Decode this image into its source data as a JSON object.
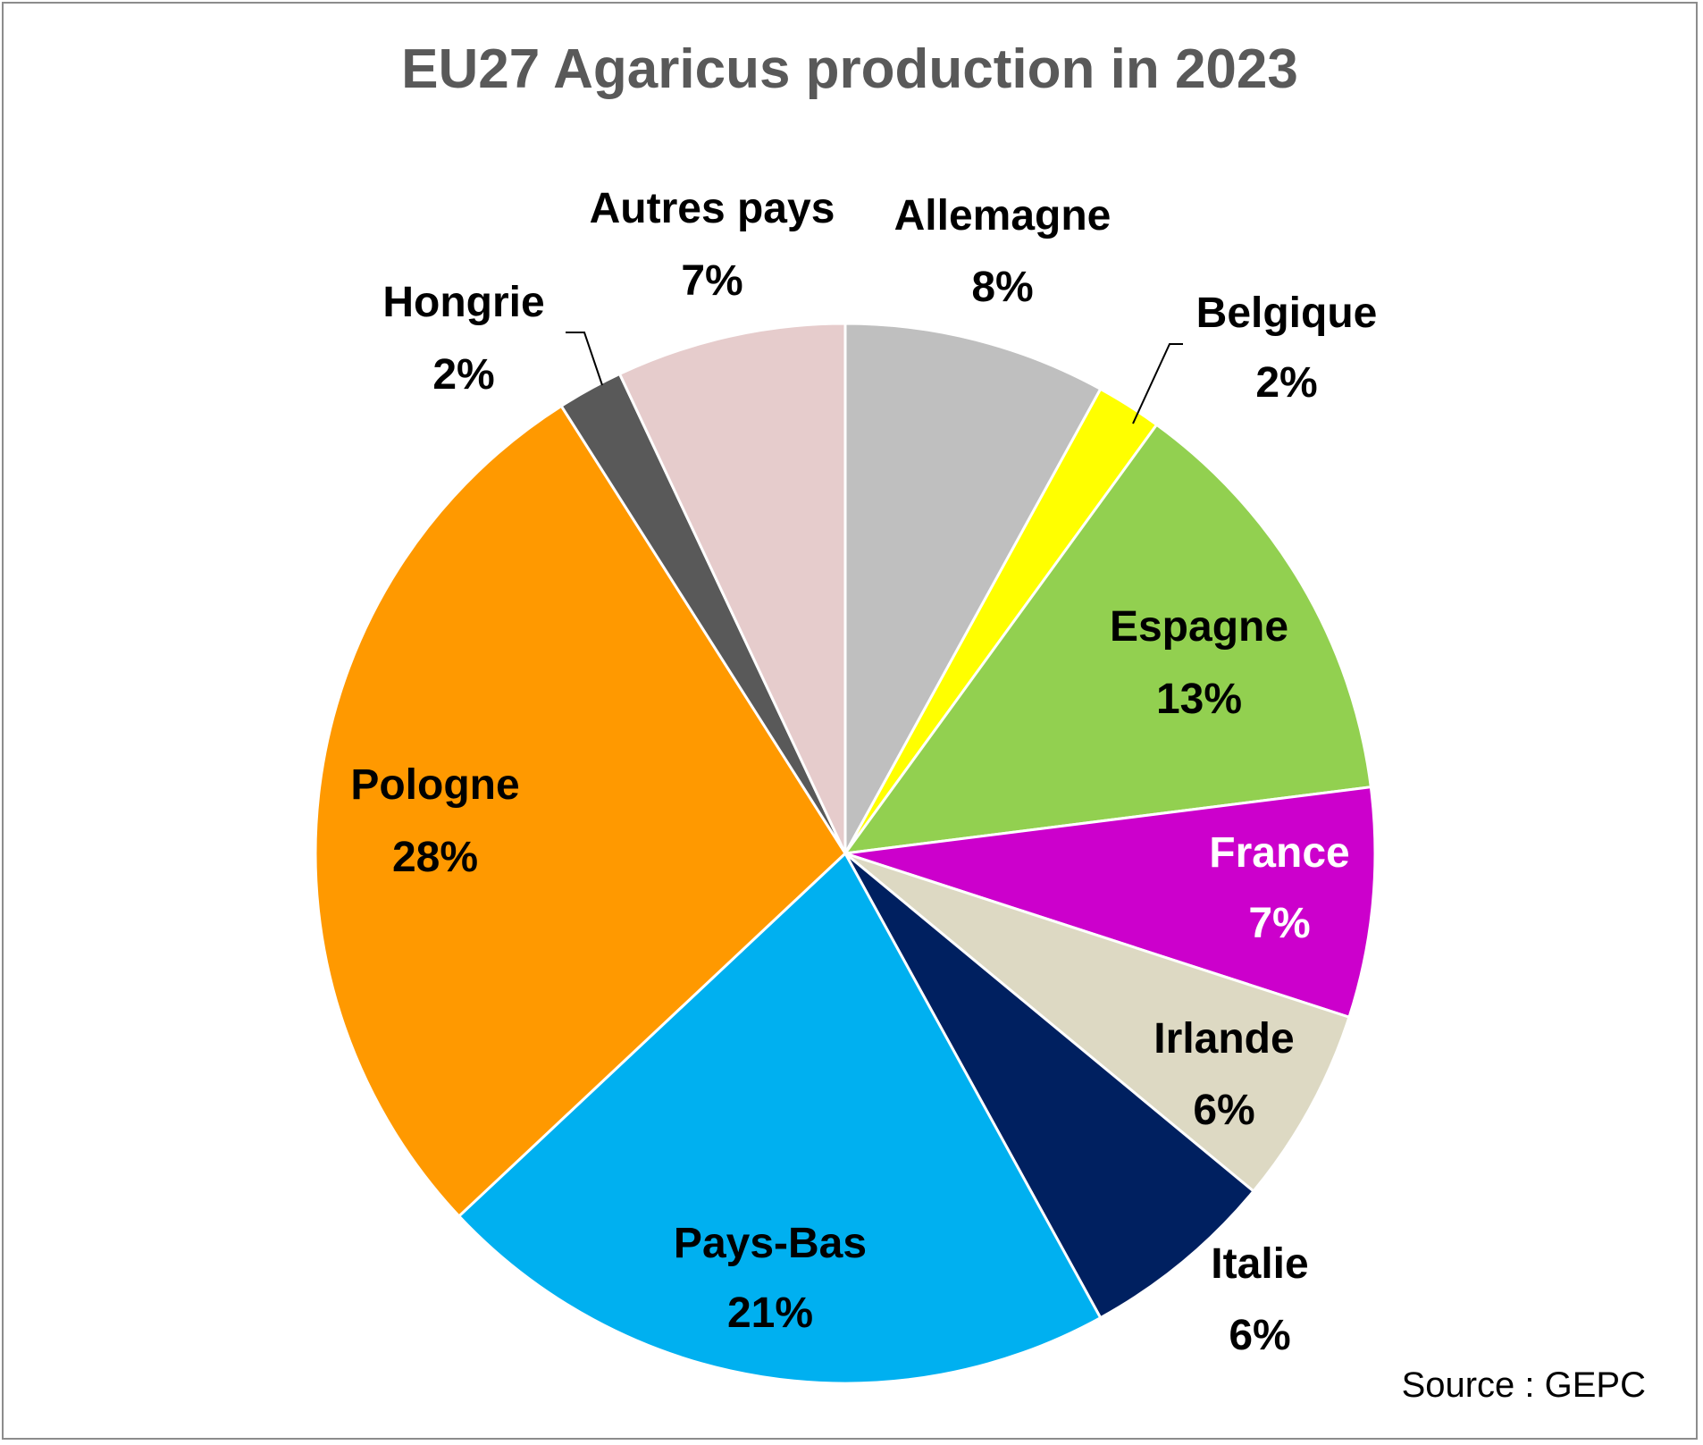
{
  "chart_data": {
    "type": "pie",
    "title": "EU27 Agaricus production in 2023",
    "source": "Source : GEPC",
    "start_angle_deg": 0,
    "direction": "clockwise",
    "slices": [
      {
        "name": "Allemagne",
        "value": 8,
        "label": "8%",
        "color": "#bfbfbf",
        "text_color": "#000000"
      },
      {
        "name": "Belgique",
        "value": 2,
        "label": "2%",
        "color": "#ffff00",
        "text_color": "#000000"
      },
      {
        "name": "Espagne",
        "value": 13,
        "label": "13%",
        "color": "#92d050",
        "text_color": "#000000"
      },
      {
        "name": "France",
        "value": 7,
        "label": "7%",
        "color": "#cc00cc",
        "text_color": "#ffffff"
      },
      {
        "name": "Irlande",
        "value": 6,
        "label": "6%",
        "color": "#ddd9c3",
        "text_color": "#000000"
      },
      {
        "name": "Italie",
        "value": 6,
        "label": "6%",
        "color": "#002060",
        "text_color": "#000000"
      },
      {
        "name": "Pays-Bas",
        "value": 21,
        "label": "21%",
        "color": "#00b0f0",
        "text_color": "#000000"
      },
      {
        "name": "Pologne",
        "value": 28,
        "label": "28%",
        "color": "#ff9900",
        "text_color": "#000000"
      },
      {
        "name": "Hongrie",
        "value": 2,
        "label": "2%",
        "color": "#595959",
        "text_color": "#000000"
      },
      {
        "name": "Autres pays",
        "value": 7,
        "label": "7%",
        "color": "#e6cccc",
        "text_color": "#000000"
      }
    ]
  }
}
